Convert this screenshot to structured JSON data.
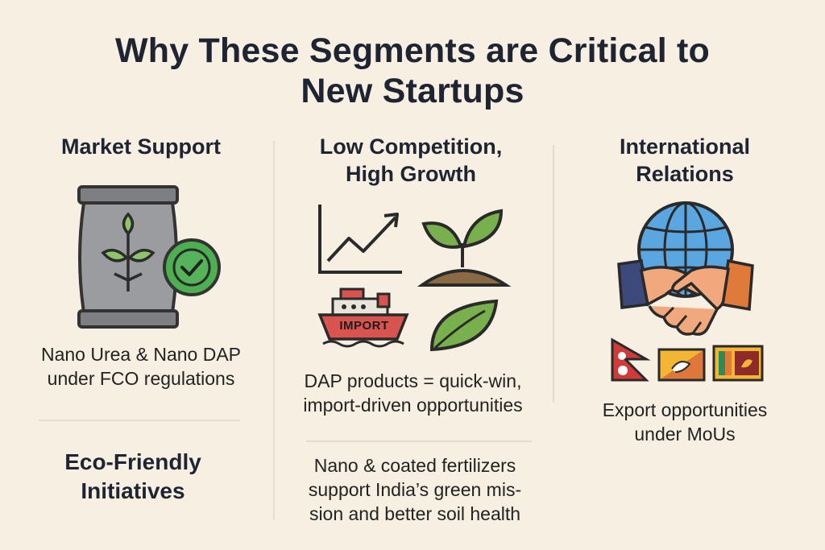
{
  "title": {
    "line1": "Why These Segments are Critical to",
    "line2": "New Startups"
  },
  "columns": {
    "market_support": {
      "heading": "Market Support",
      "text_line1": "Nano Urea & Nano DAP",
      "text_line2": "under FCO regulations",
      "icon": "fertilizer-bag-with-checkmark"
    },
    "low_competition": {
      "heading_line1": "Low Competition,",
      "heading_line2": "High Growth",
      "import_label": "IMPORT",
      "text_line1": "DAP products = quick-win,",
      "text_line2": "import-driven opportunities",
      "icons": [
        "growth-chart-icon",
        "sprout-icon",
        "import-ship-icon",
        "leaf-icon"
      ]
    },
    "international_relations": {
      "heading_line1": "International",
      "heading_line2": "Relations",
      "text_line1": "Export opportunities",
      "text_line2": "under MoUs",
      "icons": [
        "globe-icon",
        "handshake-icon",
        "nepal-flag-icon",
        "bhutan-flag-icon",
        "sri-lanka-flag-icon"
      ]
    }
  },
  "eco_friendly": {
    "heading_line1": "Eco-Friendly",
    "heading_line2": "Initiatives",
    "text_line1": "Nano & coated fertilizers",
    "text_line2": "support India’s green mis-",
    "text_line3": "sion and better soil health"
  },
  "colors": {
    "background": "#f7efe2",
    "text": "#1f2433",
    "green": "#4caf50",
    "leaf": "#78b04d",
    "ship": "#d9534f",
    "globe": "#5aa6e0"
  }
}
